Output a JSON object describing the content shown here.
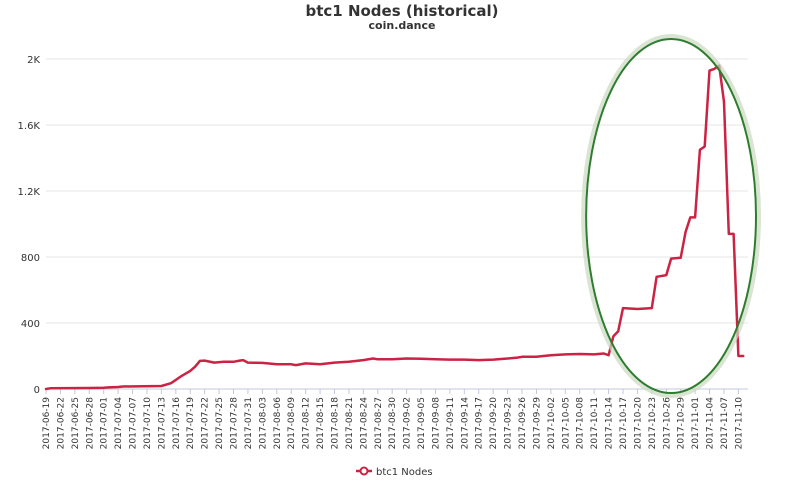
{
  "chart_data": {
    "type": "line",
    "title": "btc1 Nodes (historical)",
    "subtitle": "coin.dance",
    "xlabel": "",
    "ylabel": "",
    "ylim": [
      0,
      2000
    ],
    "yticks": [
      {
        "value": 0,
        "label": "0"
      },
      {
        "value": 400,
        "label": "400"
      },
      {
        "value": 800,
        "label": "800"
      },
      {
        "value": 1200,
        "label": "1.2K"
      },
      {
        "value": 1600,
        "label": "1.6K"
      },
      {
        "value": 2000,
        "label": "2K"
      }
    ],
    "xlim": [
      "2017-06-19",
      "2017-11-12"
    ],
    "xticks": [
      "2017-06-19",
      "2017-06-22",
      "2017-06-25",
      "2017-06-28",
      "2017-07-01",
      "2017-07-04",
      "2017-07-07",
      "2017-07-10",
      "2017-07-13",
      "2017-07-16",
      "2017-07-19",
      "2017-07-22",
      "2017-07-25",
      "2017-07-28",
      "2017-07-31",
      "2017-08-03",
      "2017-08-06",
      "2017-08-09",
      "2017-08-12",
      "2017-08-15",
      "2017-08-18",
      "2017-08-21",
      "2017-08-24",
      "2017-08-27",
      "2017-08-30",
      "2017-09-02",
      "2017-09-05",
      "2017-09-08",
      "2017-09-11",
      "2017-09-14",
      "2017-09-17",
      "2017-09-20",
      "2017-09-23",
      "2017-09-26",
      "2017-09-29",
      "2017-10-02",
      "2017-10-05",
      "2017-10-08",
      "2017-10-11",
      "2017-10-14",
      "2017-10-17",
      "2017-10-20",
      "2017-10-23",
      "2017-10-26",
      "2017-10-29",
      "2017-11-01",
      "2017-11-04",
      "2017-11-07",
      "2017-11-10"
    ],
    "grid": true,
    "legend_position": "bottom-center",
    "annotation": "green ellipse highlighting 2017-10-11 to 2017-11-12",
    "series": [
      {
        "name": "btc1 Nodes",
        "color": "#cc2244",
        "points": [
          [
            "2017-06-19",
            0
          ],
          [
            "2017-06-20",
            5
          ],
          [
            "2017-06-28",
            6
          ],
          [
            "2017-07-01",
            8
          ],
          [
            "2017-07-02",
            10
          ],
          [
            "2017-07-04",
            12
          ],
          [
            "2017-07-05",
            15
          ],
          [
            "2017-07-13",
            18
          ],
          [
            "2017-07-15",
            35
          ],
          [
            "2017-07-17",
            75
          ],
          [
            "2017-07-19",
            110
          ],
          [
            "2017-07-20",
            135
          ],
          [
            "2017-07-21",
            170
          ],
          [
            "2017-07-22",
            172
          ],
          [
            "2017-07-24",
            160
          ],
          [
            "2017-07-26",
            165
          ],
          [
            "2017-07-28",
            165
          ],
          [
            "2017-07-29",
            170
          ],
          [
            "2017-07-30",
            175
          ],
          [
            "2017-07-31",
            160
          ],
          [
            "2017-08-03",
            158
          ],
          [
            "2017-08-06",
            150
          ],
          [
            "2017-08-09",
            150
          ],
          [
            "2017-08-10",
            145
          ],
          [
            "2017-08-12",
            155
          ],
          [
            "2017-08-15",
            150
          ],
          [
            "2017-08-18",
            160
          ],
          [
            "2017-08-21",
            165
          ],
          [
            "2017-08-24",
            175
          ],
          [
            "2017-08-26",
            185
          ],
          [
            "2017-08-27",
            180
          ],
          [
            "2017-08-30",
            180
          ],
          [
            "2017-09-02",
            185
          ],
          [
            "2017-09-05",
            183
          ],
          [
            "2017-09-08",
            180
          ],
          [
            "2017-09-11",
            178
          ],
          [
            "2017-09-14",
            178
          ],
          [
            "2017-09-17",
            175
          ],
          [
            "2017-09-20",
            178
          ],
          [
            "2017-09-23",
            185
          ],
          [
            "2017-09-25",
            190
          ],
          [
            "2017-09-26",
            195
          ],
          [
            "2017-09-29",
            195
          ],
          [
            "2017-10-02",
            205
          ],
          [
            "2017-10-05",
            210
          ],
          [
            "2017-10-08",
            212
          ],
          [
            "2017-10-11",
            210
          ],
          [
            "2017-10-13",
            215
          ],
          [
            "2017-10-14",
            205
          ],
          [
            "2017-10-15",
            320
          ],
          [
            "2017-10-16",
            350
          ],
          [
            "2017-10-17",
            490
          ],
          [
            "2017-10-20",
            485
          ],
          [
            "2017-10-23",
            490
          ],
          [
            "2017-10-24",
            680
          ],
          [
            "2017-10-26",
            690
          ],
          [
            "2017-10-27",
            790
          ],
          [
            "2017-10-29",
            795
          ],
          [
            "2017-10-30",
            950
          ],
          [
            "2017-10-31",
            1040
          ],
          [
            "2017-11-01",
            1040
          ],
          [
            "2017-11-02",
            1450
          ],
          [
            "2017-11-03",
            1470
          ],
          [
            "2017-11-04",
            1930
          ],
          [
            "2017-11-05",
            1940
          ],
          [
            "2017-11-06",
            1960
          ],
          [
            "2017-11-07",
            1740
          ],
          [
            "2017-11-08",
            940
          ],
          [
            "2017-11-09",
            940
          ],
          [
            "2017-11-10",
            200
          ],
          [
            "2017-11-11",
            200
          ]
        ]
      }
    ]
  }
}
